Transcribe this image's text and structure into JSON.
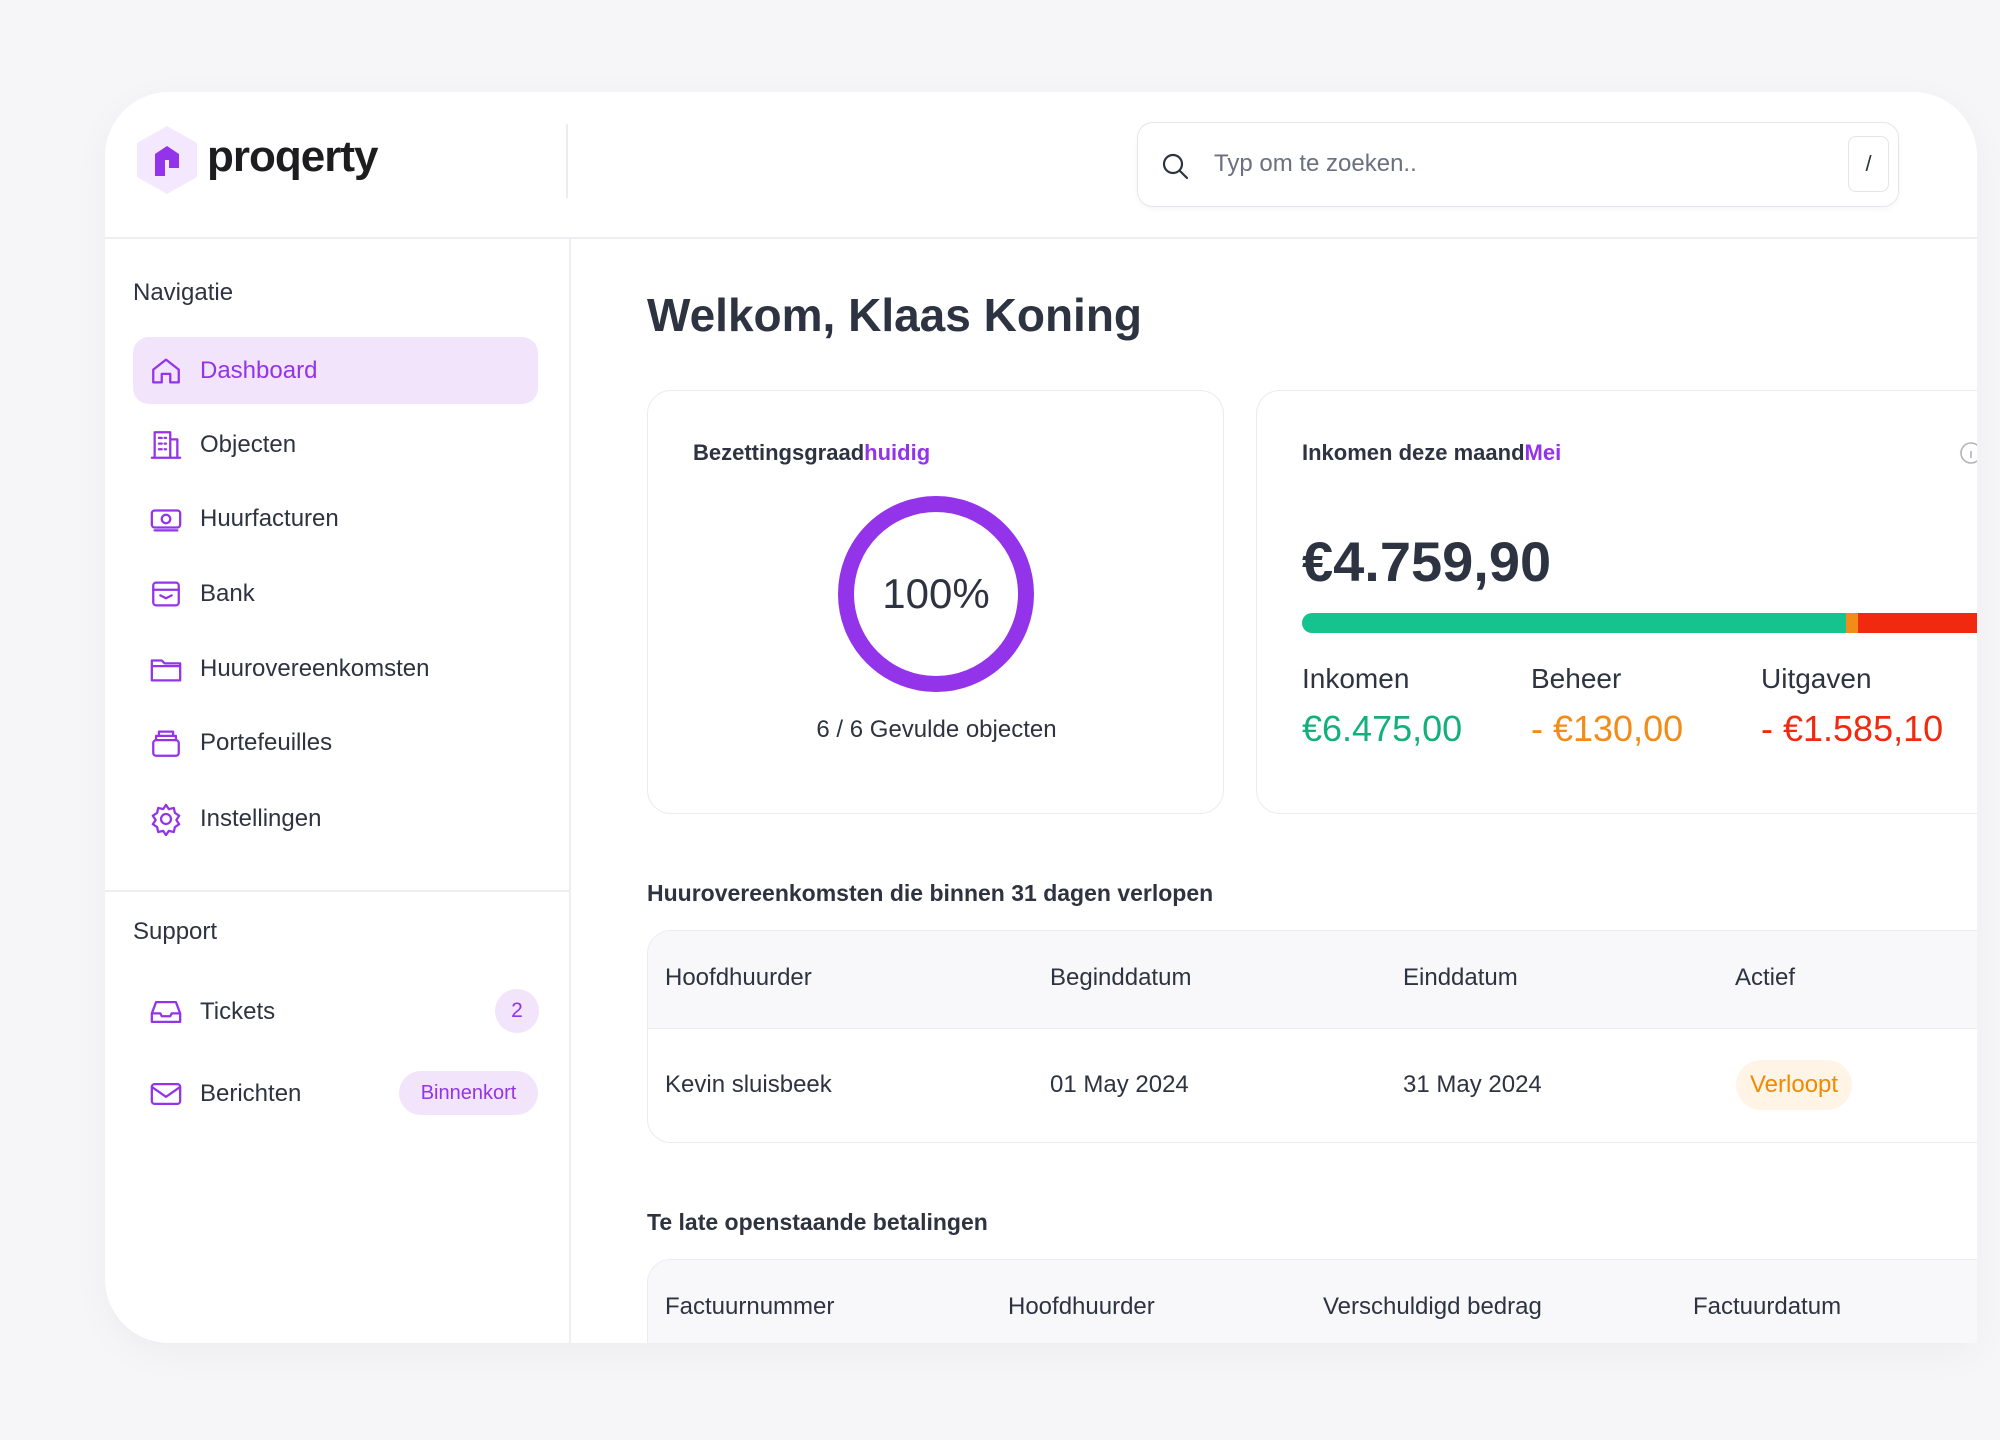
{
  "header": {
    "logo": "proqerty",
    "search_placeholder": "Typ om te zoeken..",
    "search_shortcut": "/"
  },
  "sidebar": {
    "navigation_title": "Navigatie",
    "nav_items": [
      "Dashboard",
      "Objecten",
      "Huurfacturen",
      "Bank",
      "Huurovereenkomsten",
      "Portefeuilles",
      "Instellingen"
    ],
    "support_title": "Support",
    "support_items": [
      {
        "label": "Tickets",
        "badge": "2"
      },
      {
        "label": "Berichten",
        "badge": "Binnenkort"
      }
    ]
  },
  "main": {
    "greeting": "Welkom, Klaas Koning",
    "occupancy": {
      "title": "Bezettingsgraad",
      "title_highlight": "huidig",
      "value": "100%",
      "caption": "6 / 6 Gevulde objecten"
    },
    "income": {
      "title": "Inkomen deze maand",
      "title_highlight": "Mei",
      "total": "€4.759,90",
      "breakdown": [
        {
          "label": "Inkomen",
          "amount": "€6.475,00"
        },
        {
          "label": "Beheer",
          "amount": "- €130,00"
        },
        {
          "label": "Uitgaven",
          "amount": "- €1.585,10"
        }
      ]
    },
    "expiring": {
      "title": "Huurovereenkomsten die binnen 31 dagen verlopen",
      "columns": [
        "Hoofdhuurder",
        "Beginddatum",
        "Einddatum",
        "Actief"
      ],
      "rows": [
        [
          "Kevin sluisbeek",
          "01 May 2024",
          "31 May 2024",
          "Verloopt"
        ]
      ]
    },
    "overdue": {
      "title": "Te late openstaande betalingen",
      "columns": [
        "Factuurnummer",
        "Hoofdhuurder",
        "Verschuldigd bedrag",
        "Factuurdatum"
      ]
    }
  }
}
